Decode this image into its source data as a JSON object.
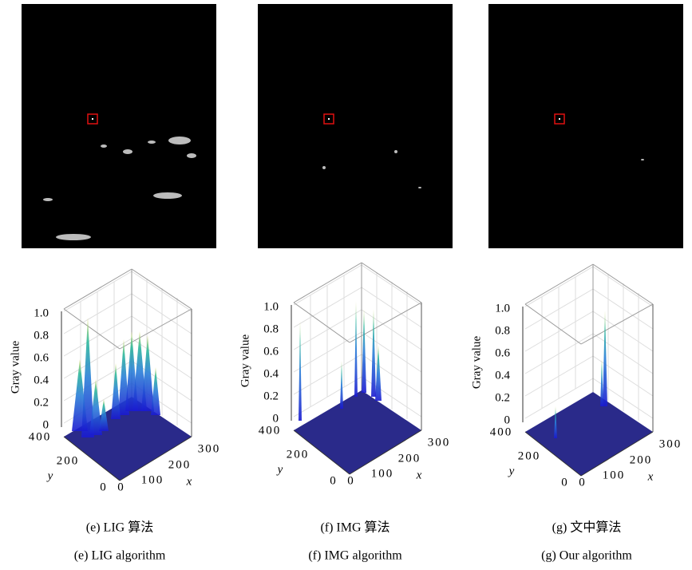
{
  "panels": [
    {
      "caption_cn": "(e) LIG 算法",
      "caption_en": "(e) LIG algorithm",
      "plot": {
        "z_label": "Gray value",
        "y_label": "y",
        "x_label": "x",
        "z_ticks": [
          "1.0",
          "0.8",
          "0.6",
          "0.4",
          "0.2",
          "0"
        ],
        "y_ticks": [
          "400",
          "200",
          "0"
        ],
        "x_ticks": [
          "0",
          "100",
          "200",
          "300"
        ]
      }
    },
    {
      "caption_cn": "(f) IMG 算法",
      "caption_en": "(f) IMG algorithm",
      "plot": {
        "z_label": "Gray value",
        "y_label": "y",
        "x_label": "x",
        "z_ticks": [
          "1.0",
          "0.8",
          "0.6",
          "0.4",
          "0.2",
          "0"
        ],
        "y_ticks": [
          "400",
          "200",
          "0"
        ],
        "x_ticks": [
          "0",
          "100",
          "200",
          "300"
        ]
      }
    },
    {
      "caption_cn": "(g) 文中算法",
      "caption_en": "(g) Our algorithm",
      "plot": {
        "z_label": "Gray value",
        "y_label": "y",
        "x_label": "x",
        "z_ticks": [
          "1.0",
          "0.8",
          "0.6",
          "0.4",
          "0.2",
          "0"
        ],
        "y_ticks": [
          "400",
          "200",
          "0"
        ],
        "x_ticks": [
          "0",
          "100",
          "200",
          "300"
        ]
      }
    }
  ]
}
